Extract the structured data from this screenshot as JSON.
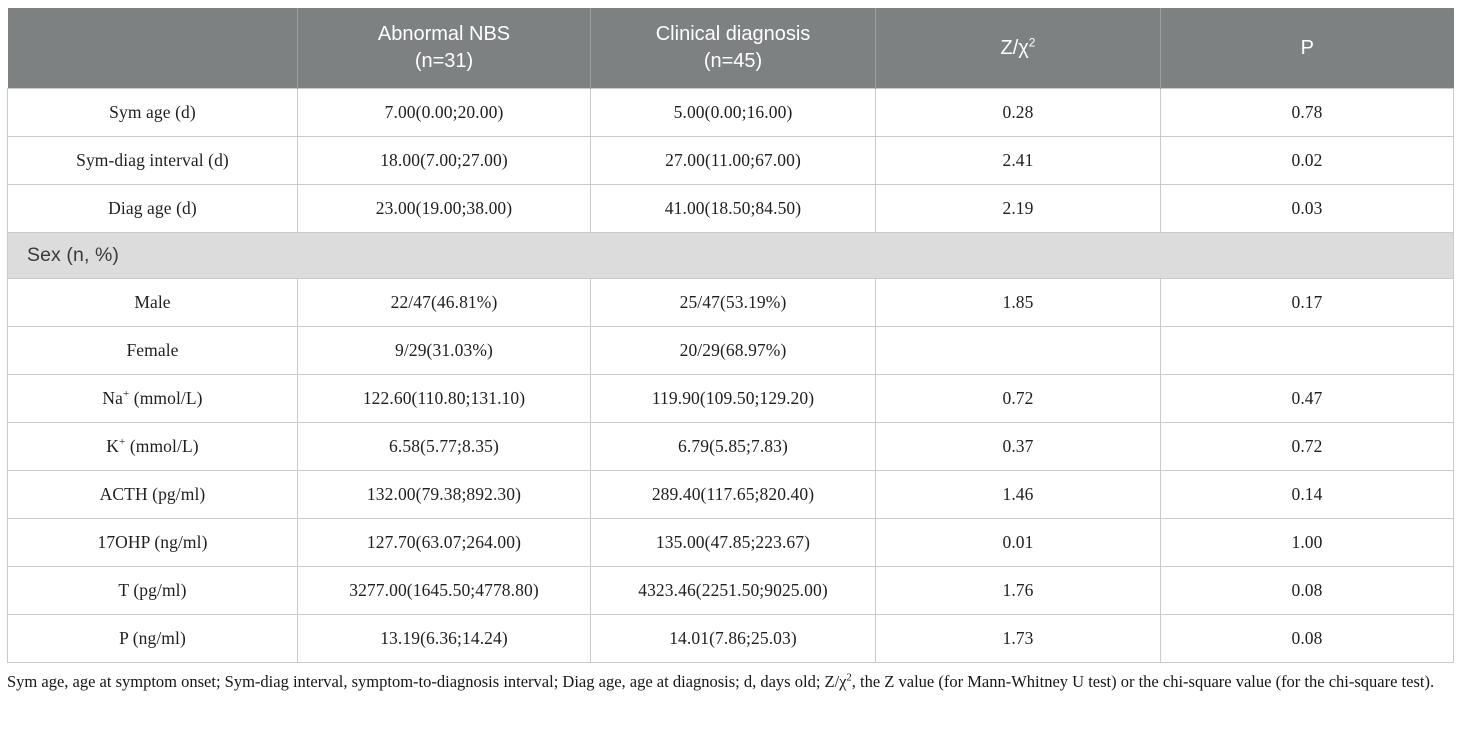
{
  "table": {
    "header": {
      "row_label_col": "",
      "abnormal_nbs_line1": "Abnormal NBS",
      "abnormal_nbs_line2": "(n=31)",
      "clinical_line1": "Clinical diagnosis",
      "clinical_line2": "(n=45)",
      "z_label_base": "Z/χ",
      "z_label_sup": "2",
      "p_label": "P"
    },
    "rows": [
      {
        "label": "Sym age (d)",
        "abnormal_nbs": "7.00(0.00;20.00)",
        "clinical_diagnosis": "5.00(0.00;16.00)",
        "z": "0.28",
        "p": "0.78"
      },
      {
        "label": "Sym-diag interval (d)",
        "abnormal_nbs": "18.00(7.00;27.00)",
        "clinical_diagnosis": "27.00(11.00;67.00)",
        "z": "2.41",
        "p": "0.02"
      },
      {
        "label": "Diag age (d)",
        "abnormal_nbs": "23.00(19.00;38.00)",
        "clinical_diagnosis": "41.00(18.50;84.50)",
        "z": "2.19",
        "p": "0.03"
      },
      {
        "section": "Sex (n, %)"
      },
      {
        "label": "Male",
        "abnormal_nbs": "22/47(46.81%)",
        "clinical_diagnosis": "25/47(53.19%)",
        "z": "1.85",
        "p": "0.17"
      },
      {
        "label": "Female",
        "abnormal_nbs": "9/29(31.03%)",
        "clinical_diagnosis": "20/29(68.97%)",
        "z": "",
        "p": ""
      },
      {
        "label": "Na",
        "label_sup": "+",
        "label_rest": " (mmol/L)",
        "abnormal_nbs": "122.60(110.80;131.10)",
        "clinical_diagnosis": "119.90(109.50;129.20)",
        "z": "0.72",
        "p": "0.47"
      },
      {
        "label": "K",
        "label_sup": "+",
        "label_rest": " (mmol/L)",
        "abnormal_nbs": "6.58(5.77;8.35)",
        "clinical_diagnosis": "6.79(5.85;7.83)",
        "z": "0.37",
        "p": "0.72"
      },
      {
        "label": "ACTH (pg/ml)",
        "abnormal_nbs": "132.00(79.38;892.30)",
        "clinical_diagnosis": "289.40(117.65;820.40)",
        "z": "1.46",
        "p": "0.14"
      },
      {
        "label": "17OHP (ng/ml)",
        "abnormal_nbs": "127.70(63.07;264.00)",
        "clinical_diagnosis": "135.00(47.85;223.67)",
        "z": "0.01",
        "p": "1.00"
      },
      {
        "label": "T (pg/ml)",
        "abnormal_nbs": "3277.00(1645.50;4778.80)",
        "clinical_diagnosis": "4323.46(2251.50;9025.00)",
        "z": "1.76",
        "p": "0.08"
      },
      {
        "label": "P (ng/ml)",
        "abnormal_nbs": "13.19(6.36;14.24)",
        "clinical_diagnosis": "14.01(7.86;25.03)",
        "z": "1.73",
        "p": "0.08"
      }
    ]
  },
  "footnote": {
    "part1": "Sym age, age at symptom onset; Sym-diag interval, symptom-to-diagnosis interval; Diag age, age at diagnosis; d, days old; Z/χ",
    "sup": "2",
    "part2": ", the Z value (for Mann-Whitney U test) or the chi-square value (for the chi-square test)."
  },
  "colors": {
    "header_bg": "#7d8181",
    "header_divider": "#9aa0a0",
    "section_bg": "#dcdcdc",
    "border": "#c7cbca",
    "header_text": "#ffffff",
    "body_text": "#1f1f1f"
  }
}
